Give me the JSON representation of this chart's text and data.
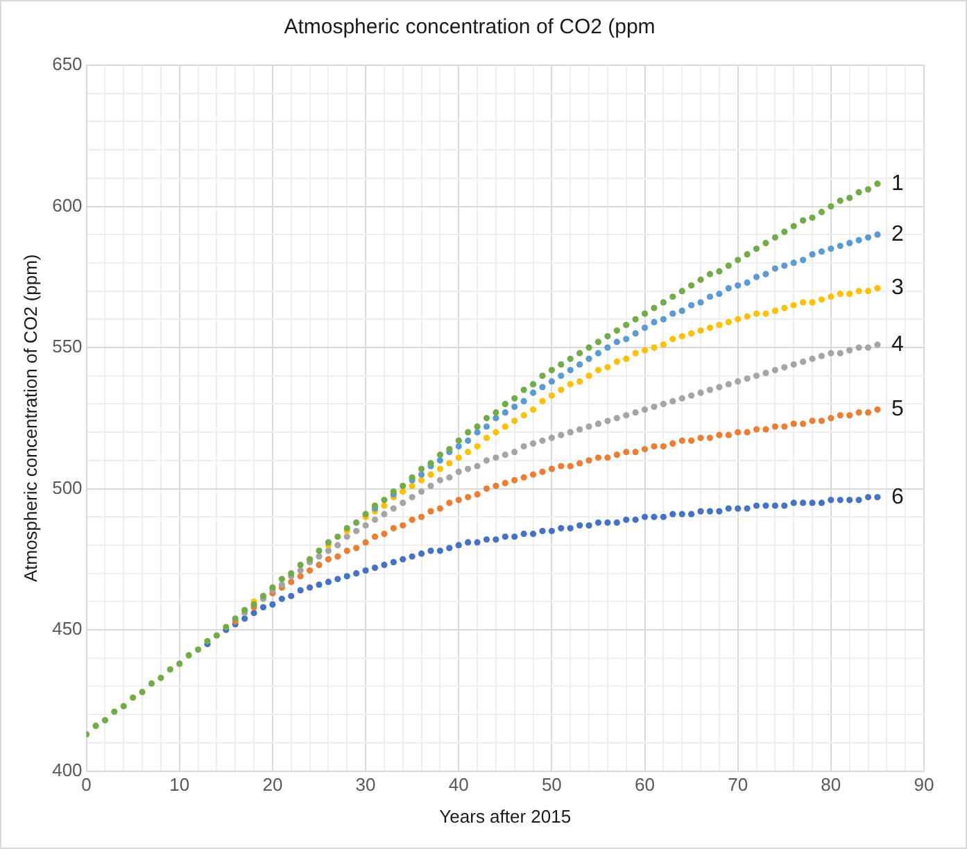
{
  "chart_data": {
    "type": "scatter",
    "title": "Atmospheric concentration of CO2 (ppm",
    "xlabel": "Years after 2015",
    "ylabel": "Atmospheric concentration of CO2 (ppm)",
    "x": [
      0,
      1,
      2,
      3,
      4,
      5,
      6,
      7,
      8,
      9,
      10,
      11,
      12,
      13,
      14,
      15,
      16,
      17,
      18,
      19,
      20,
      21,
      22,
      23,
      24,
      25,
      26,
      27,
      28,
      29,
      30,
      31,
      32,
      33,
      34,
      35,
      36,
      37,
      38,
      39,
      40,
      41,
      42,
      43,
      44,
      45,
      46,
      47,
      48,
      49,
      50,
      51,
      52,
      53,
      54,
      55,
      56,
      57,
      58,
      59,
      60,
      61,
      62,
      63,
      64,
      65,
      66,
      67,
      68,
      69,
      70,
      71,
      72,
      73,
      74,
      75,
      76,
      77,
      78,
      79,
      80,
      81,
      82,
      83,
      84,
      85
    ],
    "xlim": [
      0,
      90
    ],
    "xticks": [
      0,
      {
        "value": 2,
        "label": null
      },
      {
        "value": 4,
        "label": null
      },
      {
        "value": 6,
        "label": null
      },
      {
        "value": 8,
        "label": null
      },
      10,
      {
        "value": 12,
        "label": null
      },
      {
        "value": 14,
        "label": null
      },
      {
        "value": 16,
        "label": null
      },
      {
        "value": 18,
        "label": null
      },
      20,
      {
        "value": 22,
        "label": null
      },
      {
        "value": 24,
        "label": null
      },
      {
        "value": 26,
        "label": null
      },
      {
        "value": 28,
        "label": null
      },
      30,
      {
        "value": 32,
        "label": null
      },
      {
        "value": 34,
        "label": null
      },
      {
        "value": 36,
        "label": null
      },
      {
        "value": 38,
        "label": null
      },
      40,
      {
        "value": 42,
        "label": null
      },
      {
        "value": 44,
        "label": null
      },
      {
        "value": 46,
        "label": null
      },
      {
        "value": 48,
        "label": null
      },
      50,
      {
        "value": 52,
        "label": null
      },
      {
        "value": 54,
        "label": null
      },
      {
        "value": 56,
        "label": null
      },
      {
        "value": 58,
        "label": null
      },
      60,
      {
        "value": 62,
        "label": null
      },
      {
        "value": 64,
        "label": null
      },
      {
        "value": 66,
        "label": null
      },
      {
        "value": 68,
        "label": null
      },
      70,
      {
        "value": 72,
        "label": null
      },
      {
        "value": 74,
        "label": null
      },
      {
        "value": 76,
        "label": null
      },
      {
        "value": 78,
        "label": null
      },
      80,
      {
        "value": 82,
        "label": null
      },
      {
        "value": 84,
        "label": null
      },
      {
        "value": 86,
        "label": null
      },
      {
        "value": 88,
        "label": null
      },
      90
    ],
    "ylim": [
      400,
      650
    ],
    "yticks": [
      400,
      {
        "value": 410,
        "label": null
      },
      {
        "value": 420,
        "label": null
      },
      {
        "value": 430,
        "label": null
      },
      {
        "value": 440,
        "label": null
      },
      450,
      {
        "value": 460,
        "label": null
      },
      {
        "value": 470,
        "label": null
      },
      {
        "value": 480,
        "label": null
      },
      {
        "value": 490,
        "label": null
      },
      500,
      {
        "value": 510,
        "label": null
      },
      {
        "value": 520,
        "label": null
      },
      {
        "value": 530,
        "label": null
      },
      {
        "value": 540,
        "label": null
      },
      550,
      {
        "value": 560,
        "label": null
      },
      {
        "value": 570,
        "label": null
      },
      {
        "value": 580,
        "label": null
      },
      {
        "value": 590,
        "label": null
      },
      600,
      {
        "value": 610,
        "label": null
      },
      {
        "value": 620,
        "label": null
      },
      {
        "value": 630,
        "label": null
      },
      {
        "value": 640,
        "label": null
      },
      650
    ],
    "grid": true,
    "legend": false,
    "marker": "circle",
    "series": [
      {
        "name": "1",
        "color": "#70ad47",
        "values": [
          413,
          416,
          418,
          421,
          423,
          426,
          428,
          431,
          433,
          436,
          438,
          441,
          443,
          446,
          448,
          451,
          454,
          457,
          459,
          462,
          465,
          468,
          470,
          473,
          475,
          478,
          481,
          483,
          486,
          488,
          491,
          494,
          496,
          499,
          501,
          504,
          507,
          509,
          512,
          514,
          517,
          520,
          522,
          525,
          527,
          530,
          532,
          535,
          537,
          540,
          542,
          544,
          546,
          548,
          550,
          552,
          554,
          556,
          558,
          560,
          562,
          564,
          566,
          568,
          570,
          572,
          574,
          576,
          577,
          579,
          581,
          583,
          585,
          587,
          589,
          591,
          593,
          595,
          596,
          598,
          600,
          602,
          603,
          605,
          606,
          608
        ]
      },
      {
        "name": "2",
        "color": "#5b9bd5",
        "values": [
          null,
          null,
          null,
          null,
          null,
          null,
          null,
          null,
          null,
          null,
          null,
          null,
          null,
          null,
          null,
          null,
          null,
          null,
          null,
          null,
          null,
          null,
          null,
          null,
          null,
          null,
          null,
          null,
          null,
          null,
          null,
          493,
          null,
          498,
          null,
          503,
          505,
          508,
          510,
          513,
          515,
          517,
          520,
          522,
          525,
          527,
          529,
          531,
          534,
          536,
          538,
          540,
          542,
          544,
          546,
          548,
          550,
          552,
          553,
          555,
          557,
          559,
          560,
          562,
          563,
          565,
          566,
          568,
          569,
          571,
          572,
          573,
          575,
          576,
          578,
          579,
          580,
          581,
          583,
          584,
          585,
          586,
          587,
          588,
          589,
          590
        ]
      },
      {
        "name": "3",
        "color": "#ffc000",
        "values": [
          null,
          null,
          null,
          null,
          null,
          null,
          null,
          null,
          null,
          null,
          null,
          null,
          null,
          null,
          null,
          null,
          null,
          null,
          460,
          null,
          null,
          null,
          null,
          null,
          null,
          null,
          480,
          null,
          485,
          null,
          490,
          492,
          494,
          497,
          499,
          501,
          503,
          505,
          507,
          509,
          511,
          513,
          515,
          518,
          520,
          522,
          524,
          526,
          528,
          531,
          533,
          535,
          537,
          538,
          540,
          542,
          543,
          545,
          546,
          548,
          549,
          550,
          551,
          553,
          554,
          555,
          556,
          557,
          558,
          559,
          560,
          561,
          562,
          562,
          563,
          564,
          565,
          566,
          566,
          567,
          568,
          569,
          569,
          570,
          570,
          571
        ]
      },
      {
        "name": "4",
        "color": "#a5a5a5",
        "values": [
          null,
          null,
          null,
          null,
          null,
          null,
          null,
          null,
          null,
          null,
          null,
          null,
          null,
          null,
          null,
          null,
          null,
          456,
          null,
          461,
          464,
          466,
          469,
          471,
          474,
          476,
          478,
          480,
          483,
          485,
          487,
          489,
          491,
          493,
          495,
          497,
          499,
          501,
          503,
          504,
          506,
          507,
          508,
          510,
          511,
          512,
          513,
          515,
          516,
          517,
          518,
          519,
          520,
          521,
          522,
          523,
          524,
          525,
          526,
          527,
          528,
          529,
          530,
          531,
          532,
          533,
          534,
          535,
          536,
          537,
          538,
          539,
          540,
          541,
          542,
          543,
          544,
          545,
          546,
          547,
          548,
          548,
          549,
          550,
          550,
          551
        ]
      },
      {
        "name": "5",
        "color": "#ed7d31",
        "values": [
          null,
          null,
          null,
          null,
          null,
          null,
          null,
          null,
          null,
          null,
          null,
          null,
          null,
          null,
          null,
          null,
          453,
          null,
          458,
          null,
          463,
          465,
          467,
          469,
          471,
          473,
          475,
          476,
          478,
          479,
          481,
          483,
          484,
          486,
          487,
          489,
          490,
          492,
          493,
          495,
          496,
          497,
          498,
          500,
          501,
          502,
          503,
          504,
          505,
          506,
          507,
          508,
          508,
          509,
          510,
          511,
          511,
          512,
          513,
          513,
          514,
          515,
          515,
          516,
          517,
          517,
          518,
          518,
          519,
          519,
          520,
          520,
          521,
          521,
          522,
          522,
          523,
          523,
          524,
          524,
          525,
          526,
          526,
          527,
          527,
          528
        ]
      },
      {
        "name": "6",
        "color": "#4472c4",
        "values": [
          null,
          null,
          null,
          null,
          null,
          null,
          null,
          null,
          null,
          null,
          null,
          null,
          null,
          445,
          null,
          450,
          452,
          454,
          456,
          458,
          459,
          461,
          462,
          464,
          465,
          466,
          467,
          468,
          469,
          470,
          471,
          472,
          473,
          474,
          475,
          476,
          477,
          478,
          478,
          479,
          480,
          481,
          481,
          482,
          482,
          483,
          483,
          484,
          484,
          485,
          485,
          486,
          486,
          487,
          487,
          488,
          488,
          488,
          489,
          489,
          490,
          490,
          490,
          491,
          491,
          491,
          492,
          492,
          492,
          493,
          493,
          493,
          494,
          494,
          494,
          494,
          495,
          495,
          495,
          495,
          496,
          496,
          496,
          496,
          497,
          497
        ]
      }
    ]
  }
}
